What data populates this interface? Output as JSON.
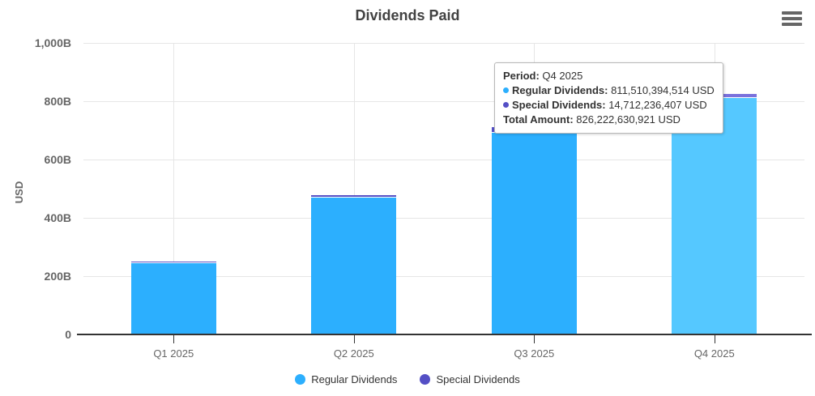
{
  "title": "Dividends Paid",
  "menu": {
    "icon": "hamburger-menu-icon"
  },
  "y_axis": {
    "title": "USD",
    "tick_labels": [
      "0",
      "200B",
      "400B",
      "600B",
      "800B",
      "1,000B"
    ]
  },
  "x_axis": {
    "labels": [
      "Q1 2025",
      "Q2 2025",
      "Q3 2025",
      "Q4 2025"
    ]
  },
  "legend": {
    "items": [
      {
        "label": "Regular Dividends",
        "color": "#2CAFFE"
      },
      {
        "label": "Special Dividends",
        "color": "#544FC5"
      }
    ]
  },
  "tooltip": {
    "period_label": "Period:",
    "period_value": "Q4 2025",
    "rows": [
      {
        "dot_color": "#2CAFFE",
        "label": "Regular Dividends:",
        "value": "811,510,394,514 USD"
      },
      {
        "dot_color": "#544FC5",
        "label": "Special Dividends:",
        "value": "14,712,236,407 USD"
      }
    ],
    "total_label": "Total Amount:",
    "total_value": "826,222,630,921 USD"
  },
  "chart_data": {
    "type": "bar",
    "stacked": true,
    "title": "Dividends Paid",
    "ylabel": "USD",
    "ylim_billion": [
      0,
      1000
    ],
    "y_tick_step_billion": 200,
    "grid": true,
    "legend_position": "bottom-center",
    "categories": [
      "Q1 2025",
      "Q2 2025",
      "Q3 2025",
      "Q4 2025"
    ],
    "series": [
      {
        "name": "Regular Dividends",
        "color": "#2CAFFE",
        "hover_color": "#55C8FF",
        "values_billion": [
          243.5,
          470,
          693,
          811.5
        ]
      },
      {
        "name": "Special Dividends",
        "color": "#544FC5",
        "hover_color": "#7A71DC",
        "values_billion": [
          5.5,
          7,
          19.5,
          14.7
        ]
      }
    ],
    "hovered_category_index": 3,
    "hovered_point_exact": {
      "period": "Q4 2025",
      "regular_dividends_usd": "811,510,394,514",
      "special_dividends_usd": "14,712,236,407",
      "total_usd": "826,222,630,921"
    }
  }
}
